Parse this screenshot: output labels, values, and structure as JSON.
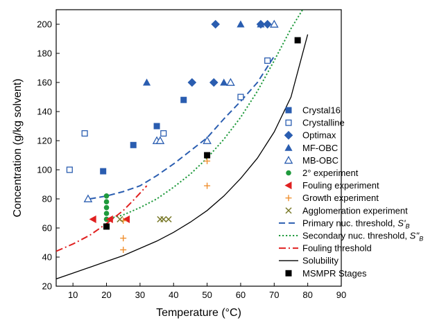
{
  "chart_data": {
    "type": "scatter",
    "xlabel": "Temperature (°C)",
    "ylabel": "Concentration (g/kg solvent)",
    "xlim": [
      5,
      90
    ],
    "ylim": [
      20,
      210
    ],
    "xticks": [
      10,
      20,
      30,
      40,
      50,
      60,
      70,
      80,
      90
    ],
    "yticks": [
      20,
      40,
      60,
      80,
      100,
      120,
      140,
      160,
      180,
      200
    ],
    "grid": false,
    "legend_position": "right",
    "series": [
      {
        "name": "Crystal16",
        "marker": "square-filled",
        "color": "#2a5db0",
        "points": [
          [
            19,
            99
          ],
          [
            28,
            117
          ],
          [
            35,
            130
          ],
          [
            43,
            148
          ]
        ]
      },
      {
        "name": "Crystalline",
        "marker": "square-open",
        "color": "#2a5db0",
        "points": [
          [
            4,
            100
          ],
          [
            9,
            100
          ],
          [
            13.5,
            125
          ],
          [
            37,
            125
          ],
          [
            60,
            150
          ],
          [
            68,
            175
          ]
        ]
      },
      {
        "name": "Optimax",
        "marker": "diamond-filled",
        "color": "#2a5db0",
        "points": [
          [
            45.5,
            160
          ],
          [
            52,
            160
          ],
          [
            52.5,
            200
          ],
          [
            66,
            200
          ],
          [
            68,
            200
          ]
        ]
      },
      {
        "name": "MF-OBC",
        "marker": "triangle-filled",
        "color": "#2a5db0",
        "points": [
          [
            32,
            160
          ],
          [
            55,
            160
          ],
          [
            60,
            200
          ],
          [
            66,
            200
          ]
        ]
      },
      {
        "name": "MB-OBC",
        "marker": "triangle-open",
        "color": "#2a5db0",
        "points": [
          [
            14.5,
            80
          ],
          [
            35,
            120
          ],
          [
            36,
            120
          ],
          [
            50,
            120
          ],
          [
            57,
            160
          ],
          [
            70,
            200
          ]
        ]
      },
      {
        "name": "2° experiment",
        "marker": "circle-filled",
        "color": "#1f9a3c",
        "points": [
          [
            20,
            82
          ],
          [
            20,
            78
          ],
          [
            20,
            74
          ],
          [
            20,
            70
          ],
          [
            20,
            66
          ]
        ]
      },
      {
        "name": "Fouling experiment",
        "marker": "triangle-left-filled",
        "color": "#e02020",
        "points": [
          [
            16,
            66
          ],
          [
            21,
            66
          ],
          [
            26,
            66
          ]
        ]
      },
      {
        "name": "Growth experiment",
        "marker": "plus",
        "color": "#f09030",
        "points": [
          [
            25,
            45
          ],
          [
            25,
            53
          ],
          [
            25,
            65
          ],
          [
            50,
            89
          ],
          [
            50,
            106
          ]
        ]
      },
      {
        "name": "Agglomeration experiment",
        "marker": "x",
        "color": "#7a7a2a",
        "points": [
          [
            24,
            66
          ],
          [
            36,
            66
          ],
          [
            37,
            66
          ],
          [
            38.5,
            66
          ]
        ]
      },
      {
        "name": "Primary nuc. threshold, ",
        "label_main": "Primary nuc. threshold, ",
        "label_italic": "S'",
        "label_sub": "B",
        "line": "dashed",
        "color": "#2a5db0",
        "points": [
          [
            15,
            80
          ],
          [
            20,
            82
          ],
          [
            25,
            85
          ],
          [
            30,
            89
          ],
          [
            35,
            96
          ],
          [
            40,
            104
          ],
          [
            45,
            113
          ],
          [
            50,
            122
          ],
          [
            55,
            135
          ],
          [
            60,
            147
          ],
          [
            65,
            160
          ],
          [
            70,
            178
          ]
        ]
      },
      {
        "name": "Secondary nuc. threshold, ",
        "label_main": "Secondary nuc. threshold, ",
        "label_italic": "S''",
        "label_sub": "B",
        "line": "dotted",
        "color": "#1f9a3c",
        "points": [
          [
            20,
            66
          ],
          [
            25,
            69
          ],
          [
            30,
            74
          ],
          [
            35,
            80
          ],
          [
            40,
            88
          ],
          [
            45,
            97
          ],
          [
            50,
            108
          ],
          [
            55,
            121
          ],
          [
            60,
            136
          ],
          [
            65,
            154
          ],
          [
            70,
            175
          ],
          [
            75,
            197
          ],
          [
            79,
            212
          ]
        ]
      },
      {
        "name": "Fouling threshold",
        "line": "dashdot",
        "color": "#e02020",
        "points": [
          [
            5,
            44
          ],
          [
            10,
            49
          ],
          [
            15,
            55
          ],
          [
            20,
            63
          ],
          [
            25,
            72
          ],
          [
            28,
            79
          ],
          [
            32,
            89
          ]
        ]
      },
      {
        "name": "Solubility",
        "line": "solid",
        "color": "#000000",
        "points": [
          [
            5,
            25
          ],
          [
            10,
            29
          ],
          [
            15,
            33
          ],
          [
            20,
            37
          ],
          [
            25,
            41
          ],
          [
            30,
            46
          ],
          [
            35,
            51
          ],
          [
            40,
            57
          ],
          [
            45,
            64
          ],
          [
            50,
            72
          ],
          [
            55,
            82
          ],
          [
            60,
            94
          ],
          [
            65,
            108
          ],
          [
            70,
            126
          ],
          [
            75,
            150
          ],
          [
            80,
            193
          ]
        ]
      },
      {
        "name": "MSMPR Stages",
        "marker": "square-filled",
        "color": "#000000",
        "points": [
          [
            20,
            61
          ],
          [
            50,
            110
          ],
          [
            77,
            189
          ]
        ]
      }
    ]
  }
}
